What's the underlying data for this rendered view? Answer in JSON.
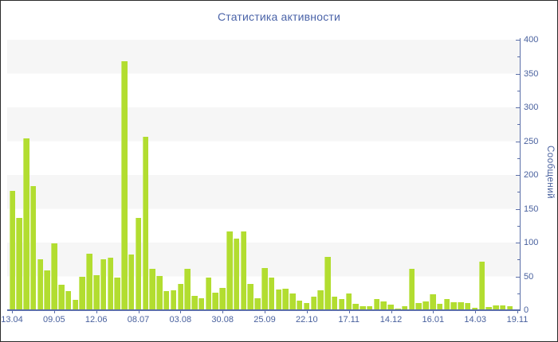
{
  "title": "Статистика активности",
  "y_axis_title": "Сообщений",
  "chart_data": {
    "type": "bar",
    "title": "Статистика активности",
    "xlabel": "",
    "ylabel": "Сообщений",
    "ylim": [
      0,
      400
    ],
    "y_major_step": 50,
    "y_minor_step": 25,
    "grid": "alternating horizontal bands every 50 units",
    "legend": "none",
    "y_axis_side": "right",
    "y_tick_labels": [
      "0",
      "50",
      "100",
      "150",
      "200",
      "250",
      "300",
      "350",
      "400"
    ],
    "x_tick_labels": [
      "13.04",
      "09.05",
      "12.06",
      "08.07",
      "03.08",
      "30.08",
      "25.09",
      "22.10",
      "17.11",
      "14.12",
      "16.01",
      "14.03",
      "19.11"
    ],
    "values": [
      177,
      137,
      254,
      184,
      75,
      59,
      99,
      38,
      28,
      15,
      49,
      83,
      52,
      75,
      78,
      48,
      368,
      82,
      136,
      256,
      61,
      51,
      28,
      29,
      39,
      61,
      21,
      18,
      48,
      26,
      33,
      116,
      106,
      117,
      39,
      18,
      62,
      48,
      31,
      32,
      25,
      14,
      11,
      20,
      29,
      79,
      20,
      17,
      25,
      9,
      6,
      6,
      17,
      13,
      8,
      2,
      6,
      61,
      11,
      13,
      24,
      9,
      16,
      12,
      12,
      11,
      4,
      72,
      5,
      7,
      7,
      6
    ],
    "colors": {
      "bar": "#b2dd30",
      "axis": "#5b6fa8",
      "text": "#49619e",
      "title_text": "#4a63a8",
      "band": "#f6f6f6",
      "frame_border": "#2b2b2b"
    }
  }
}
